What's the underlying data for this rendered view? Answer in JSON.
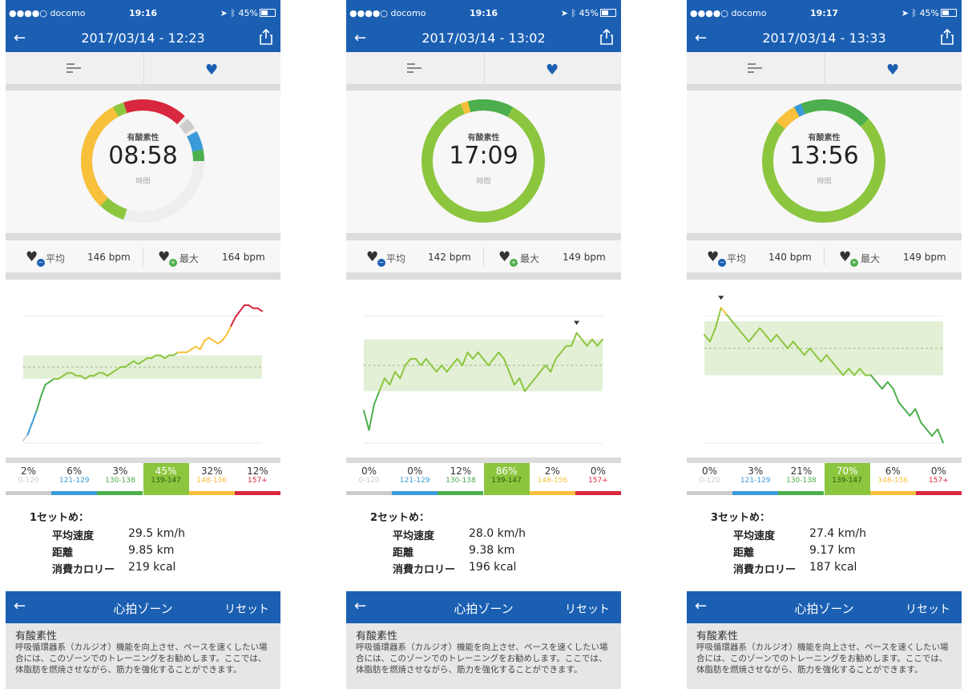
{
  "screens": [
    {
      "status": {
        "carrier": "●●●●○ docomo",
        "time": "19:16",
        "battery": "45%"
      },
      "title": "2017/03/14 - 12:23",
      "ring": {
        "label": "有酸素性",
        "time": "08:58",
        "sub": "時間",
        "segments": [
          {
            "zone": "139-147",
            "from": 0.55,
            "to": 1.03
          },
          {
            "zone": "148-156",
            "from": 0.62,
            "to": 0.92
          },
          {
            "zone": "157+",
            "from": 0.95,
            "to": 1.12
          },
          {
            "zone": "0-120",
            "from": 1.13,
            "to": 1.16
          },
          {
            "zone": "121-129",
            "from": 1.17,
            "to": 1.22
          },
          {
            "zone": "130-138",
            "from": 1.22,
            "to": 1.25
          }
        ]
      },
      "hr": {
        "avg_label": "平均",
        "avg": "146 bpm",
        "max_label": "最大",
        "max": "164 bpm"
      },
      "chart_data": {
        "type": "line",
        "band": [
          139,
          147
        ],
        "ylim": [
          115,
          170
        ],
        "values": [
          118,
          120,
          124,
          128,
          133,
          137,
          138,
          139,
          139,
          140,
          141,
          141,
          140,
          140,
          139,
          140,
          140,
          141,
          141,
          140,
          141,
          142,
          143,
          143,
          144,
          145,
          144,
          145,
          146,
          146,
          147,
          147,
          146,
          147,
          147,
          148,
          148,
          148,
          149,
          150,
          149,
          152,
          153,
          152,
          151,
          152,
          154,
          157,
          160,
          162,
          164,
          164,
          163,
          163,
          162
        ],
        "marker": null
      },
      "zones": [
        {
          "pct": "2%",
          "range": "0-120",
          "color": "#cccccc"
        },
        {
          "pct": "6%",
          "range": "121-129",
          "color": "#3a9ad9"
        },
        {
          "pct": "3%",
          "range": "130-138",
          "color": "#4cae4c"
        },
        {
          "pct": "45%",
          "range": "139-147",
          "color": "#8cc63f",
          "hi": true
        },
        {
          "pct": "32%",
          "range": "148-156",
          "color": "#f9c03b"
        },
        {
          "pct": "12%",
          "range": "157+",
          "color": "#d9273f"
        }
      ],
      "set": {
        "head": "1セットめ：",
        "r1": "平均速度",
        "v1": "29.5 km/h",
        "r2": "距離",
        "v2": "9.85 km",
        "r3": "消費カロリー",
        "v3": "219 kcal"
      },
      "bottom": {
        "title": "心拍ゾーン",
        "reset": "リセット"
      },
      "desc": {
        "title": "有酸素性",
        "text": "呼吸循環器系（カルジオ）機能を向上させ、ペースを速くしたい場合には、このゾーンでのトレーニングをお勧めします。ここでは、体脂肪を燃焼させながら、筋力を強化することができます。"
      }
    },
    {
      "status": {
        "carrier": "●●●●○ docomo",
        "time": "19:16",
        "battery": "45%"
      },
      "title": "2017/03/14 - 13:02",
      "ring": {
        "label": "有酸素性",
        "time": "17:09",
        "sub": "時間",
        "segments": [
          {
            "zone": "139-147",
            "from": 0.0,
            "to": 1.0
          },
          {
            "zone": "148-156",
            "from": 0.94,
            "to": 0.96
          },
          {
            "zone": "130-138",
            "from": 0.96,
            "to": 1.08
          }
        ]
      },
      "hr": {
        "avg_label": "平均",
        "avg": "142 bpm",
        "max_label": "最大",
        "max": "149 bpm"
      },
      "chart_data": {
        "type": "line",
        "band": [
          139,
          147
        ],
        "ylim": [
          130,
          155
        ],
        "values": [
          136,
          133,
          137,
          139,
          141,
          140,
          142,
          141,
          143,
          144,
          144,
          143,
          144,
          143,
          142,
          143,
          142,
          143,
          144,
          143,
          145,
          144,
          145,
          144,
          143,
          144,
          145,
          144,
          142,
          140,
          141,
          139,
          140,
          141,
          142,
          143,
          142,
          144,
          145,
          146,
          146,
          148,
          147,
          146,
          147,
          146,
          147
        ],
        "marker": 41
      },
      "zones": [
        {
          "pct": "0%",
          "range": "0-120",
          "color": "#cccccc"
        },
        {
          "pct": "0%",
          "range": "121-129",
          "color": "#3a9ad9"
        },
        {
          "pct": "12%",
          "range": "130-138",
          "color": "#4cae4c"
        },
        {
          "pct": "86%",
          "range": "139-147",
          "color": "#8cc63f",
          "hi": true
        },
        {
          "pct": "2%",
          "range": "148-156",
          "color": "#f9c03b"
        },
        {
          "pct": "0%",
          "range": "157+",
          "color": "#d9273f"
        }
      ],
      "set": {
        "head": "2セットめ：",
        "r1": "平均速度",
        "v1": "28.0 km/h",
        "r2": "距離",
        "v2": "9.38 km",
        "r3": "消費カロリー",
        "v3": "196 kcal"
      },
      "bottom": {
        "title": "心拍ゾーン",
        "reset": "リセット"
      },
      "desc": {
        "title": "有酸素性",
        "text": "呼吸循環器系（カルジオ）機能を向上させ、ペースを速くしたい場合には、このゾーンでのトレーニングをお勧めします。ここでは、体脂肪を燃焼させながら、筋力を強化することができます。"
      }
    },
    {
      "status": {
        "carrier": "●●●●○ docomo",
        "time": "19:17",
        "battery": "45%"
      },
      "title": "2017/03/14 - 13:33",
      "ring": {
        "label": "有酸素性",
        "time": "13:56",
        "sub": "時間",
        "segments": [
          {
            "zone": "139-147",
            "from": 0.0,
            "to": 1.0
          },
          {
            "zone": "148-156",
            "from": 0.86,
            "to": 0.92
          },
          {
            "zone": "121-129",
            "from": 0.92,
            "to": 0.94
          },
          {
            "zone": "130-138",
            "from": 0.94,
            "to": 1.13
          }
        ]
      },
      "hr": {
        "avg_label": "平均",
        "avg": "140 bpm",
        "max_label": "最大",
        "max": "149 bpm"
      },
      "chart_data": {
        "type": "line",
        "band": [
          139,
          147
        ],
        "ylim": [
          128,
          152
        ],
        "values": [
          145,
          144,
          146,
          149,
          148,
          147,
          146,
          145,
          144,
          145,
          146,
          145,
          144,
          145,
          144,
          143,
          144,
          143,
          142,
          143,
          142,
          141,
          142,
          141,
          140,
          139,
          140,
          139,
          140,
          139,
          139,
          138,
          137,
          138,
          137,
          135,
          134,
          133,
          134,
          132,
          131,
          130,
          131,
          129
        ],
        "marker": 3
      },
      "zones": [
        {
          "pct": "0%",
          "range": "0-120",
          "color": "#cccccc"
        },
        {
          "pct": "3%",
          "range": "121-129",
          "color": "#3a9ad9"
        },
        {
          "pct": "21%",
          "range": "130-138",
          "color": "#4cae4c"
        },
        {
          "pct": "70%",
          "range": "139-147",
          "color": "#8cc63f",
          "hi": true
        },
        {
          "pct": "6%",
          "range": "148-156",
          "color": "#f9c03b"
        },
        {
          "pct": "0%",
          "range": "157+",
          "color": "#d9273f"
        }
      ],
      "set": {
        "head": "3セットめ：",
        "r1": "平均速度",
        "v1": "27.4 km/h",
        "r2": "距離",
        "v2": "9.17 km",
        "r3": "消費カロリー",
        "v3": "187 kcal"
      },
      "bottom": {
        "title": "心拍ゾーン",
        "reset": "リセット"
      },
      "desc": {
        "title": "有酸素性",
        "text": "呼吸循環器系（カルジオ）機能を向上させ、ペースを速くしたい場合には、このゾーンでのトレーニングをお勧めします。ここでは、体脂肪を燃焼させながら、筋力を強化することができます。"
      }
    }
  ],
  "colors": {
    "nav": "#1b5fb3",
    "z0": "#cccccc",
    "z1": "#3a9ad9",
    "z2": "#4cae4c",
    "z3": "#8cc63f",
    "z4": "#f9c03b",
    "z5": "#d9273f",
    "band": "#e3f0d6"
  },
  "icons": {
    "back": "arrow-left-icon",
    "share": "share-icon",
    "bars": "bars-icon",
    "heart": "heart-icon",
    "avg": "heart-avg-icon",
    "max": "heart-max-icon"
  }
}
